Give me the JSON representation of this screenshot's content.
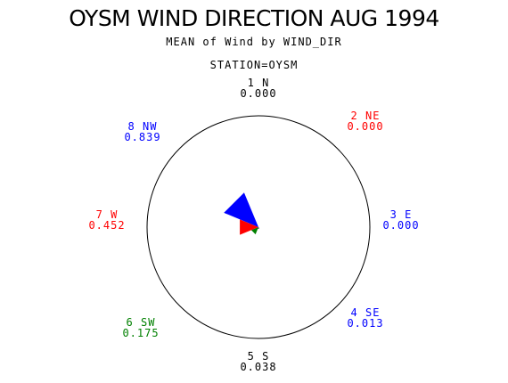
{
  "title": "OYSM WIND DIRECTION AUG 1994",
  "subtitle": "MEAN of Wind by WIND_DIR",
  "station": "STATION=OYSM",
  "colors": {
    "red": "#ff0000",
    "blue": "#0000ff",
    "green": "#008000",
    "black": "#000000"
  },
  "chart_data": {
    "type": "wind-rose",
    "directions": [
      {
        "label": "1 N",
        "value": 0.0,
        "value_label": "0.000",
        "color": "#000000"
      },
      {
        "label": "2 NE",
        "value": 0.0,
        "value_label": "0.000",
        "color": "#ff0000"
      },
      {
        "label": "3 E",
        "value": 0.0,
        "value_label": "0.000",
        "color": "#0000ff"
      },
      {
        "label": "4 SE",
        "value": 0.013,
        "value_label": "0.013",
        "color": "#0000ff"
      },
      {
        "label": "5 S",
        "value": 0.038,
        "value_label": "0.038",
        "color": "#000000"
      },
      {
        "label": "6 SW",
        "value": 0.175,
        "value_label": "0.175",
        "color": "#008000"
      },
      {
        "label": "7 W",
        "value": 0.452,
        "value_label": "0.452",
        "color": "#ff0000"
      },
      {
        "label": "8 NW",
        "value": 0.839,
        "value_label": "0.839",
        "color": "#0000ff"
      }
    ],
    "radial_max": 2.5
  }
}
